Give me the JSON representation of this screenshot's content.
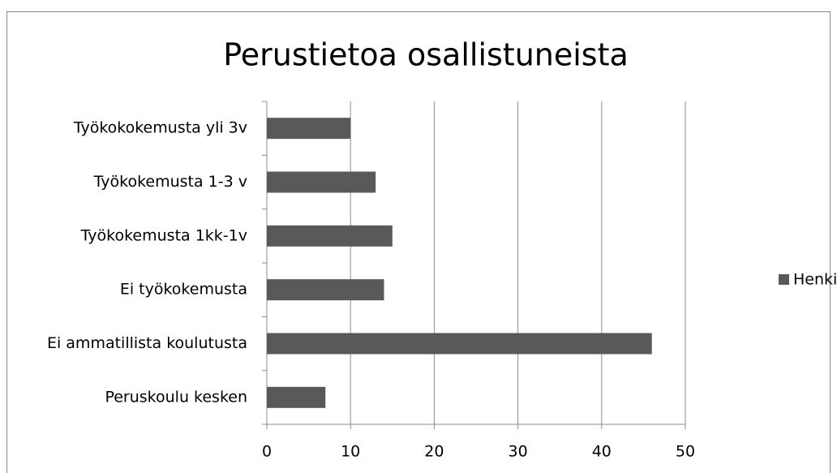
{
  "chart_data": {
    "type": "bar",
    "orientation": "horizontal",
    "title": "Perustietoa osallistuneista",
    "categories": [
      "Työkokokemusta yli 3v",
      "Työkokemusta 1-3 v",
      "Työkokemusta 1kk-1v",
      "Ei työkokemusta",
      "Ei ammatillista koulutusta",
      "Peruskoulu kesken"
    ],
    "series": [
      {
        "name": "Henkilöä",
        "color": "#595959",
        "values": [
          10,
          13,
          15,
          14,
          46,
          7
        ]
      }
    ],
    "xlim": [
      0,
      50
    ],
    "xticks": [
      0,
      10,
      20,
      30,
      40,
      50
    ],
    "grid": true,
    "legend": "right"
  }
}
